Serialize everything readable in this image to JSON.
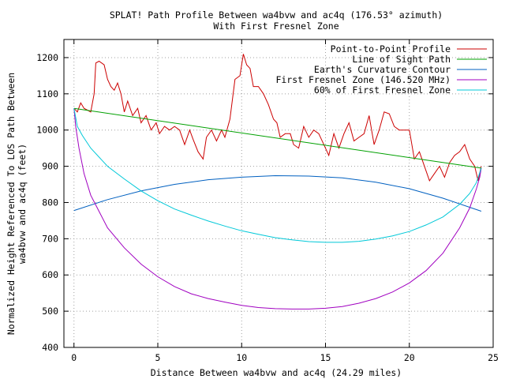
{
  "chart_data": {
    "type": "line",
    "title_line1": "SPLAT! Path Profile Between wa4bvw and ac4q (176.53° azimuth)",
    "title_line2": "With First Fresnel Zone",
    "xlabel": "Distance Between wa4bvw and ac4q (24.29 miles)",
    "ylabel_line1": "Normalized Height Referenced To LOS Path Between",
    "ylabel_line2": "wa4bvw and ac4q (feet)",
    "xlim": [
      -0.6,
      25
    ],
    "ylim": [
      400,
      1250
    ],
    "x_ticks": [
      0,
      5,
      10,
      15,
      20,
      25
    ],
    "y_ticks": [
      400,
      500,
      600,
      700,
      800,
      900,
      1000,
      1100,
      1200
    ],
    "grid": true,
    "legend_position": "top-right",
    "series": [
      {
        "name": "Point-to-Point Profile",
        "color": "#cc0000",
        "x": [
          0,
          0.2,
          0.4,
          0.6,
          0.8,
          1.0,
          1.2,
          1.3,
          1.5,
          1.8,
          2.0,
          2.2,
          2.4,
          2.6,
          2.8,
          3.0,
          3.2,
          3.5,
          3.8,
          4.0,
          4.3,
          4.6,
          4.9,
          5.1,
          5.4,
          5.7,
          6.0,
          6.3,
          6.6,
          6.9,
          7.1,
          7.4,
          7.7,
          7.9,
          8.2,
          8.5,
          8.8,
          9.0,
          9.3,
          9.6,
          9.9,
          10.1,
          10.3,
          10.5,
          10.7,
          11.0,
          11.3,
          11.6,
          11.9,
          12.1,
          12.3,
          12.6,
          12.9,
          13.1,
          13.4,
          13.7,
          14.0,
          14.3,
          14.6,
          14.9,
          15.2,
          15.5,
          15.8,
          16.1,
          16.4,
          16.7,
          17.0,
          17.3,
          17.6,
          17.9,
          18.2,
          18.5,
          18.8,
          19.1,
          19.4,
          19.7,
          20.0,
          20.3,
          20.6,
          20.9,
          21.2,
          21.5,
          21.8,
          22.1,
          22.4,
          22.7,
          23.0,
          23.3,
          23.6,
          23.9,
          24.1,
          24.29
        ],
        "values": [
          1060,
          1050,
          1075,
          1060,
          1055,
          1050,
          1100,
          1185,
          1190,
          1180,
          1140,
          1120,
          1110,
          1130,
          1100,
          1050,
          1080,
          1040,
          1060,
          1020,
          1040,
          1000,
          1020,
          990,
          1010,
          1000,
          1010,
          1000,
          960,
          1000,
          975,
          940,
          920,
          980,
          1000,
          970,
          1000,
          980,
          1030,
          1140,
          1150,
          1210,
          1180,
          1170,
          1120,
          1120,
          1100,
          1070,
          1030,
          1020,
          980,
          990,
          990,
          960,
          950,
          1010,
          980,
          1000,
          990,
          960,
          930,
          990,
          950,
          990,
          1020,
          970,
          980,
          990,
          1040,
          960,
          1000,
          1050,
          1045,
          1010,
          1000,
          1000,
          1000,
          920,
          940,
          900,
          860,
          880,
          900,
          870,
          910,
          930,
          940,
          960,
          920,
          900,
          860,
          900
        ]
      },
      {
        "name": "Line of Sight Path",
        "color": "#00a000",
        "x": [
          0,
          24.29
        ],
        "values": [
          1060,
          895
        ]
      },
      {
        "name": "Earth's Curvature Contour",
        "color": "#0060c0",
        "x": [
          0,
          2,
          4,
          6,
          8,
          10,
          12,
          14,
          16,
          18,
          20,
          22,
          24.29
        ],
        "values": [
          778,
          808,
          832,
          850,
          863,
          870,
          874,
          873,
          868,
          856,
          838,
          812,
          776
        ]
      },
      {
        "name": "First Fresnel Zone (146.520 MHz)",
        "color": "#a000c0",
        "x": [
          0,
          0.1,
          0.3,
          0.6,
          1.0,
          2.0,
          3.0,
          4.0,
          5.0,
          6.0,
          7.0,
          8.0,
          9.0,
          10.0,
          11.0,
          12.0,
          13.0,
          14.0,
          15.0,
          16.0,
          17.0,
          18.0,
          19.0,
          20.0,
          21.0,
          22.0,
          23.0,
          23.6,
          24.0,
          24.2,
          24.29
        ],
        "values": [
          1060,
          1010,
          950,
          880,
          820,
          730,
          675,
          630,
          595,
          568,
          548,
          535,
          525,
          516,
          510,
          507,
          506,
          506,
          508,
          513,
          522,
          535,
          553,
          578,
          612,
          660,
          730,
          785,
          838,
          870,
          895
        ]
      },
      {
        "name": "60% of First Fresnel Zone",
        "color": "#00c8d8",
        "x": [
          0,
          0.2,
          0.5,
          1.0,
          2.0,
          3.0,
          4.0,
          5.0,
          6.0,
          7.0,
          8.0,
          9.0,
          10.0,
          11.0,
          12.0,
          13.0,
          14.0,
          15.0,
          16.0,
          17.0,
          18.0,
          19.0,
          20.0,
          21.0,
          22.0,
          23.0,
          23.6,
          24.0,
          24.29
        ],
        "values": [
          1060,
          1010,
          985,
          950,
          900,
          865,
          832,
          805,
          782,
          765,
          749,
          735,
          722,
          712,
          703,
          697,
          692,
          690,
          690,
          693,
          699,
          708,
          720,
          738,
          760,
          795,
          825,
          855,
          895
        ]
      }
    ]
  }
}
